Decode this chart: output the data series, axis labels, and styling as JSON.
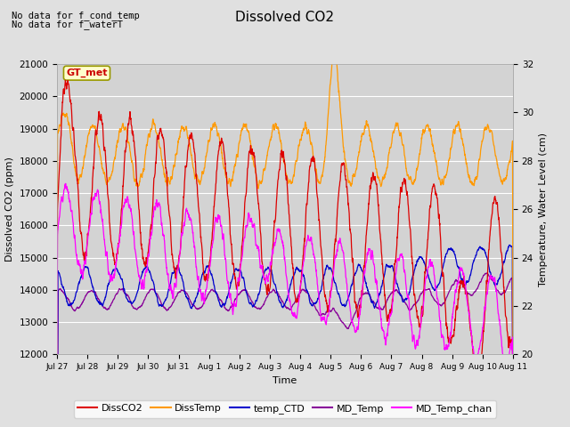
{
  "title": "Dissolved CO2",
  "xlabel": "Time",
  "ylabel_left": "Dissolved CO2 (ppm)",
  "ylabel_right": "Temperature, Water Level (cm)",
  "annotation1": "No data for f_cond_temp",
  "annotation2": "No data for f_waterT",
  "gt_met_label": "GT_met",
  "ylim_left": [
    12000,
    21000
  ],
  "ylim_right": [
    20,
    32
  ],
  "xtick_labels": [
    "Jul 27",
    "Jul 28",
    "Jul 29",
    "Jul 30",
    "Jul 31",
    "Aug 1",
    "Aug 2",
    "Aug 3",
    "Aug 4",
    "Aug 5",
    "Aug 6",
    "Aug 7",
    "Aug 8",
    "Aug 9",
    "Aug 10",
    "Aug 11"
  ],
  "legend_entries": [
    {
      "label": "DissCO2",
      "color": "#dd0000"
    },
    {
      "label": "DissTemp",
      "color": "#ff9900"
    },
    {
      "label": "temp_CTD",
      "color": "#0000cc"
    },
    {
      "label": "MD_Temp",
      "color": "#880099"
    },
    {
      "label": "MD_Temp_chan",
      "color": "#ff00ff"
    }
  ],
  "bg_color": "#e0e0e0",
  "plot_bg_color": "#d3d3d3",
  "grid_color": "#ffffff",
  "yticks_left": [
    12000,
    13000,
    14000,
    15000,
    16000,
    17000,
    18000,
    19000,
    20000,
    21000
  ],
  "yticks_right": [
    20,
    22,
    24,
    26,
    28,
    30,
    32
  ]
}
